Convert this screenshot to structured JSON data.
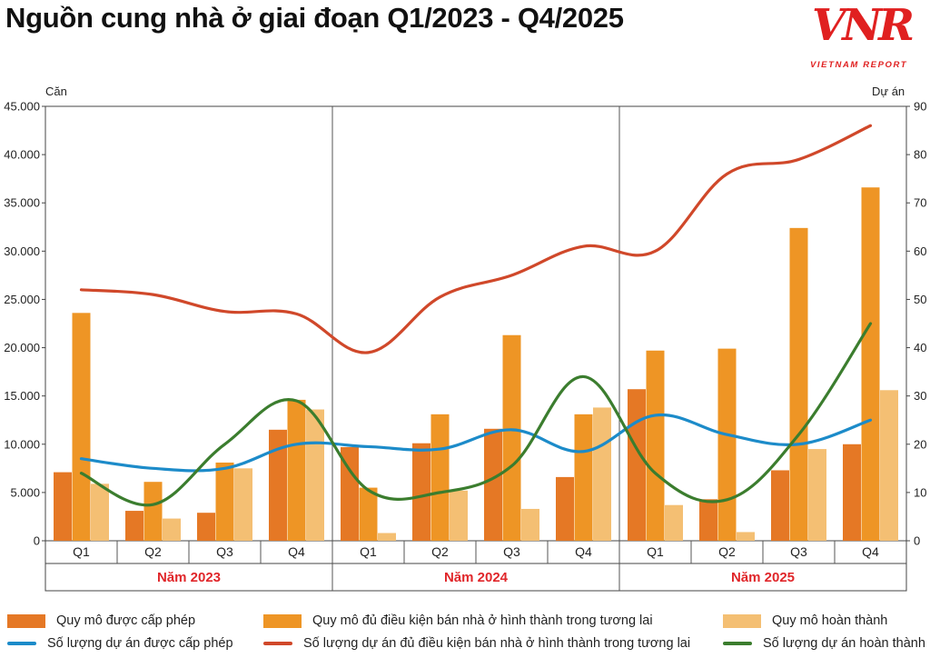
{
  "chart_data": {
    "type": "bar+line",
    "title": "Nguồn cung nhà ở giai đoạn Q1/2023 - Q4/2025",
    "ylabel_left": "Căn",
    "ylabel_right": "Dự án",
    "ylim_left": [
      0,
      45000
    ],
    "ylim_right": [
      0,
      90
    ],
    "left_ticks": [
      "0",
      "5.000",
      "10.000",
      "15.000",
      "20.000",
      "25.000",
      "30.000",
      "35.000",
      "40.000",
      "45.000"
    ],
    "right_ticks": [
      "0",
      "10",
      "20",
      "30",
      "40",
      "50",
      "60",
      "70",
      "80",
      "90"
    ],
    "categories": [
      "Q1",
      "Q2",
      "Q3",
      "Q4",
      "Q1",
      "Q2",
      "Q3",
      "Q4",
      "Q1",
      "Q2",
      "Q3",
      "Q4"
    ],
    "year_groups": [
      "Năm 2023",
      "Năm 2024",
      "Năm 2025"
    ],
    "bar_series": [
      {
        "name": "Quy mô được cấp phép",
        "color": "#e57825",
        "values": [
          7100,
          3100,
          2900,
          11500,
          9700,
          10100,
          11600,
          6600,
          15700,
          4300,
          7300,
          10000
        ]
      },
      {
        "name": "Quy mô đủ điều kiện bán nhà ở hình thành trong tương lai",
        "color": "#ee9525",
        "values": [
          23600,
          6100,
          8100,
          14600,
          5500,
          13100,
          21300,
          13100,
          19700,
          19900,
          32400,
          36600
        ]
      },
      {
        "name": "Quy mô hoàn thành",
        "color": "#f4bf73",
        "values": [
          5900,
          2300,
          7500,
          13600,
          800,
          5200,
          3300,
          13800,
          3700,
          900,
          9500,
          15600
        ]
      }
    ],
    "line_series": [
      {
        "name": "Số lượng dự án được cấp phép",
        "color": "#1c8bc9",
        "values": [
          17,
          15,
          15,
          20,
          19.5,
          19,
          23,
          18.5,
          26,
          22,
          20,
          25
        ]
      },
      {
        "name": "Số lượng dự án đủ điều kiện bán nhà ở hình thành trong tương lai",
        "color": "#d0482a",
        "values": [
          52,
          51,
          47.5,
          47,
          39,
          50.5,
          55,
          61,
          60,
          76,
          79,
          86
        ]
      },
      {
        "name": "Số lượng dự án hoàn thành",
        "color": "#3b7d2e",
        "values": [
          14,
          7.5,
          20,
          29,
          10.5,
          10,
          15.5,
          34,
          14,
          8.5,
          22,
          45
        ]
      }
    ]
  },
  "logo": {
    "text": "VNR",
    "subtitle": "VIETNAM REPORT"
  }
}
